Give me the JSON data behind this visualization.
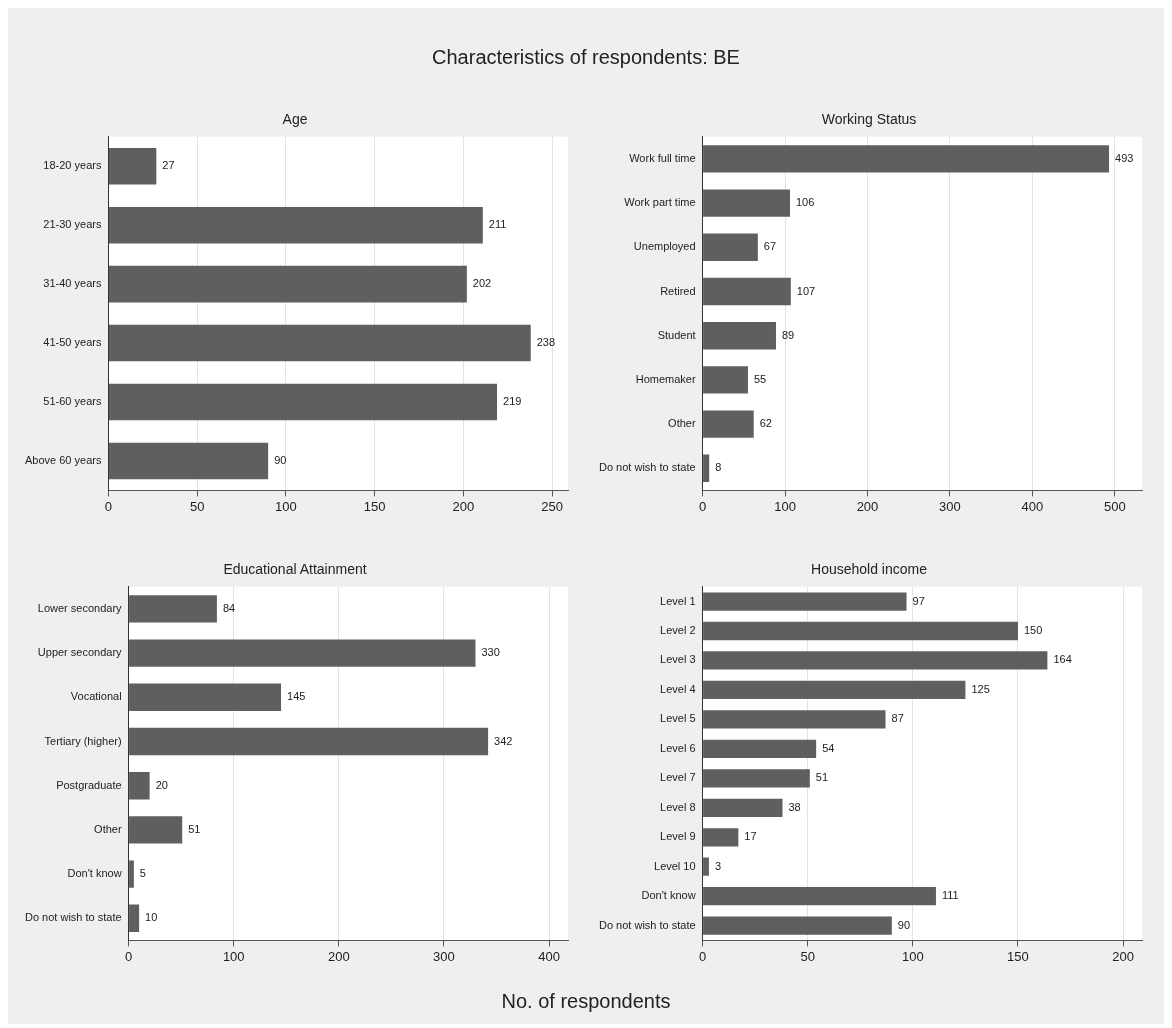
{
  "chart_data": [
    {
      "type": "bar",
      "orientation": "horizontal",
      "title": "Age",
      "annotations": [
        "Characteristics of respondents: BE",
        "No. of respondents"
      ],
      "categories": [
        "18-20 years",
        "21-30 years",
        "31-40 years",
        "41-50 years",
        "51-60 years",
        "Above 60 years"
      ],
      "values": [
        27,
        211,
        202,
        238,
        219,
        90
      ],
      "color": "#5f5f5f",
      "xlim": [
        0,
        259
      ],
      "xticks": [
        0,
        50,
        100,
        150,
        200,
        250
      ],
      "grid": "x",
      "data_labels": true,
      "legend": false
    },
    {
      "type": "bar",
      "orientation": "horizontal",
      "title": "Working Status",
      "categories": [
        "Work full time",
        "Work part time",
        "Unemployed",
        "Retired",
        "Student",
        "Homemaker",
        "Other",
        "Do not wish to state"
      ],
      "values": [
        493,
        106,
        67,
        107,
        89,
        55,
        62,
        8
      ],
      "color": "#5f5f5f",
      "xlim": [
        0,
        533
      ],
      "xticks": [
        0,
        100,
        200,
        300,
        400,
        500
      ],
      "grid": "x",
      "data_labels": true,
      "legend": false
    },
    {
      "type": "bar",
      "orientation": "horizontal",
      "title": "Educational Attainment",
      "categories": [
        "Lower secondary",
        "Upper secondary",
        "Vocational",
        "Tertiary (higher)",
        "Postgraduate",
        "Other",
        "Don't know",
        "Do not wish to state"
      ],
      "values": [
        84,
        330,
        145,
        342,
        20,
        51,
        5,
        10
      ],
      "color": "#5f5f5f",
      "xlim": [
        0,
        418
      ],
      "xticks": [
        0,
        100,
        200,
        300,
        400
      ],
      "grid": "x",
      "data_labels": true,
      "legend": false
    },
    {
      "type": "bar",
      "orientation": "horizontal",
      "title": "Household income",
      "categories": [
        "Level 1",
        "Level 2",
        "Level 3",
        "Level 4",
        "Level 5",
        "Level 6",
        "Level 7",
        "Level 8",
        "Level 9",
        "Level 10",
        "Don't know",
        "Do not wish to state"
      ],
      "values": [
        97,
        150,
        164,
        125,
        87,
        54,
        51,
        38,
        17,
        3,
        111,
        90
      ],
      "color": "#5f5f5f",
      "xlim": [
        0,
        209
      ],
      "xticks": [
        0,
        50,
        100,
        150,
        200
      ],
      "grid": "x",
      "data_labels": true,
      "legend": false
    }
  ]
}
